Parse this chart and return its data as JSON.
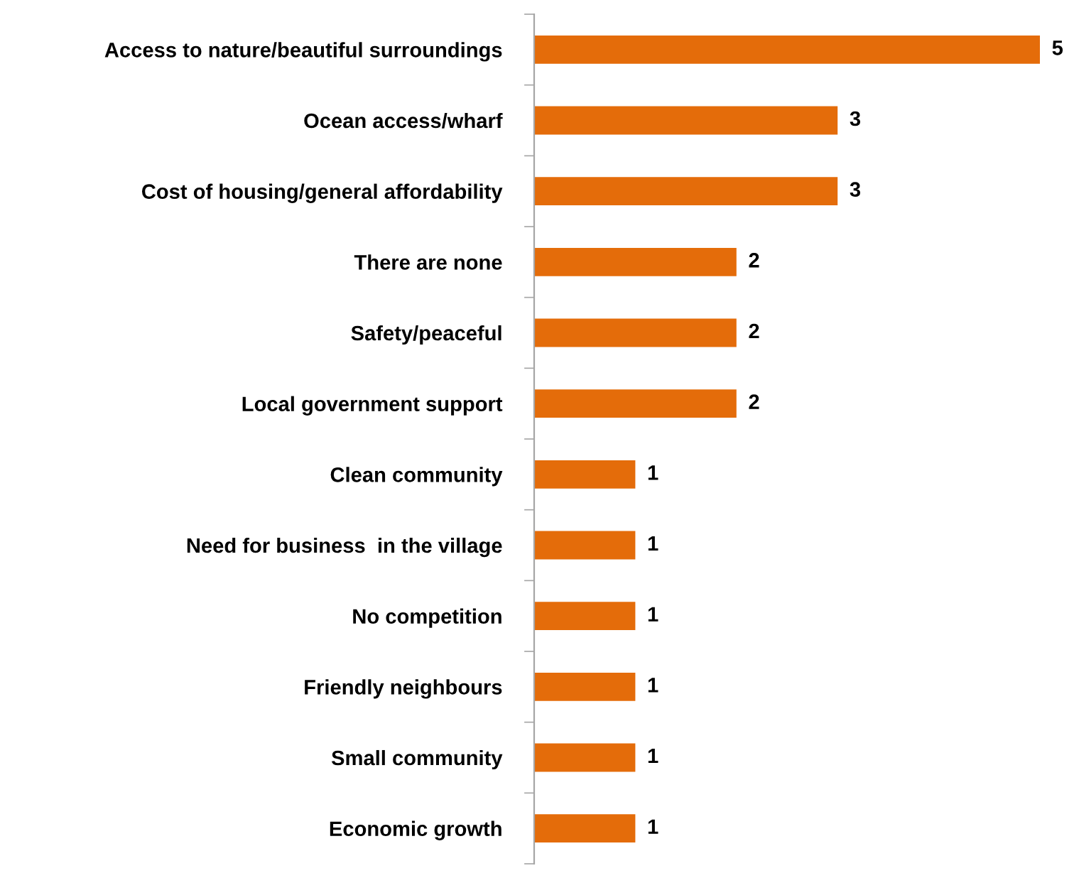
{
  "chart_data": {
    "type": "bar",
    "orientation": "horizontal",
    "categories": [
      "Access to nature/beautiful surroundings",
      "Ocean access/wharf",
      "Cost of housing/general affordability",
      "There are none",
      "Safety/peaceful",
      "Local government support",
      "Clean community",
      "Need for business  in the village",
      "No competition",
      "Friendly neighbours",
      "Small community",
      "Economic growth"
    ],
    "values": [
      5,
      3,
      3,
      2,
      2,
      2,
      1,
      1,
      1,
      1,
      1,
      1
    ],
    "color": "#e46c0a",
    "data_labels": true,
    "xlim": [
      0,
      5
    ],
    "tick_labels": "y",
    "grid": false,
    "legend": false
  }
}
